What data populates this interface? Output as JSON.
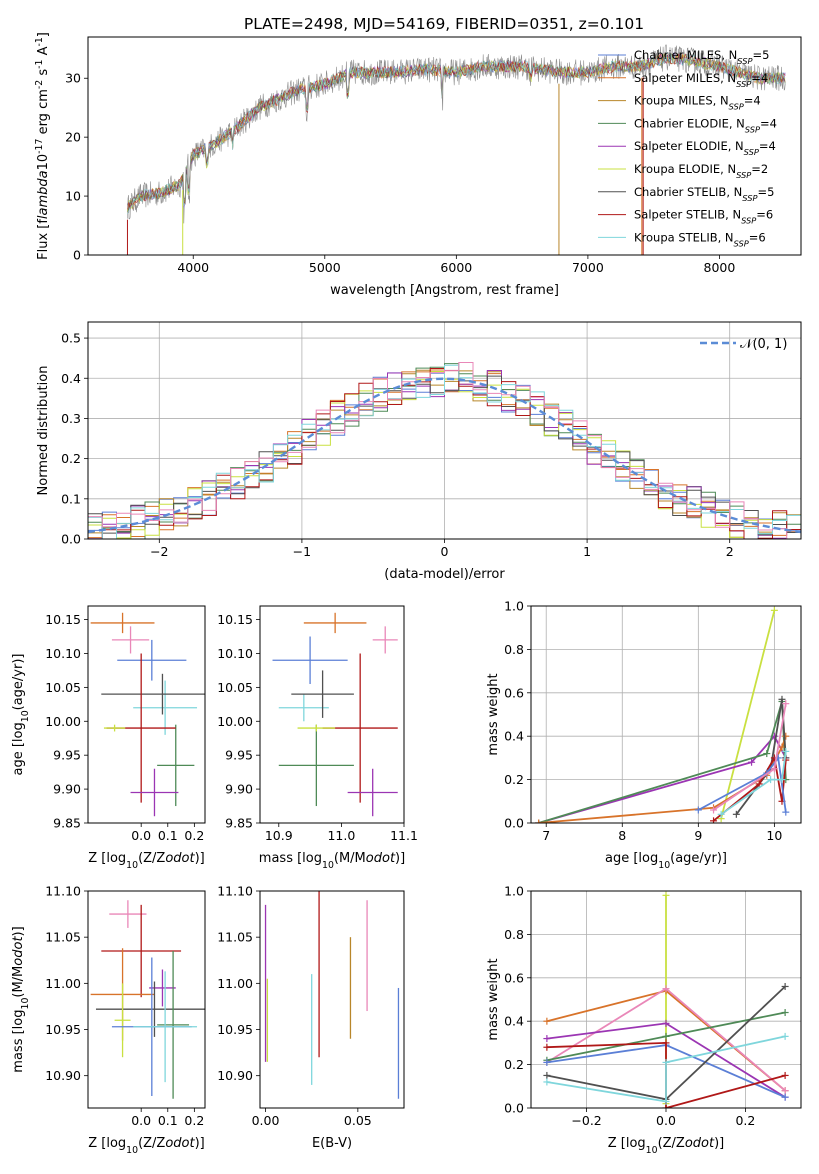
{
  "colors": {
    "chabrier_miles": "#5b7fd6",
    "salpeter_miles": "#d8732a",
    "kroupa_miles": "#b8862a",
    "chabrier_elodie": "#4f8a57",
    "salpeter_elodie": "#9b35b3",
    "kroupa_elodie": "#c9e040",
    "chabrier_stelib": "#505050",
    "salpeter_stelib": "#b01818",
    "kroupa_stelib": "#7fd6dc",
    "pink": "#e987b8",
    "normal_curve": "#5b8cd6"
  },
  "chart_data": [
    {
      "id": "spectrum",
      "type": "line",
      "title": "PLATE=2498, MJD=54169, FIBERID=0351, z=0.101",
      "xlabel": "wavelength [Angstrom, rest frame]",
      "ylabel": "Flux [f$_\\lambda$10$^{-17}$ erg cm$^{-2}$ s$^{-1}$ A$^{-1}$]",
      "xlim": [
        3200,
        8620
      ],
      "ylim": [
        0,
        37
      ],
      "xticks": [
        4000,
        5000,
        6000,
        7000,
        8000
      ],
      "yticks": [
        0,
        10,
        20,
        30
      ],
      "legend_position": "top-right",
      "continuum": [
        [
          3500,
          8
        ],
        [
          3600,
          10
        ],
        [
          3750,
          10.5
        ],
        [
          3900,
          12
        ],
        [
          4000,
          17
        ],
        [
          4100,
          18
        ],
        [
          4300,
          21
        ],
        [
          4500,
          25
        ],
        [
          4800,
          28
        ],
        [
          5000,
          29
        ],
        [
          5200,
          31
        ],
        [
          5500,
          31
        ],
        [
          5800,
          31.5
        ],
        [
          6000,
          31
        ],
        [
          6200,
          32
        ],
        [
          6500,
          32
        ],
        [
          6800,
          31
        ],
        [
          7000,
          31
        ],
        [
          7200,
          32
        ],
        [
          7400,
          32
        ],
        [
          7600,
          33.5
        ],
        [
          7800,
          33
        ],
        [
          8000,
          32
        ],
        [
          8300,
          30
        ],
        [
          8500,
          30
        ]
      ],
      "series": [
        {
          "name": "Chabrier MILES, N$_{SSP}$=5",
          "color_key": "chabrier_miles"
        },
        {
          "name": "Salpeter MILES, N$_{SSP}$=4",
          "color_key": "salpeter_miles"
        },
        {
          "name": "Kroupa MILES, N$_{SSP}$=4",
          "color_key": "kroupa_miles"
        },
        {
          "name": "Chabrier ELODIE, N$_{SSP}$=4",
          "color_key": "chabrier_elodie"
        },
        {
          "name": "Salpeter ELODIE, N$_{SSP}$=4",
          "color_key": "salpeter_elodie"
        },
        {
          "name": "Kroupa ELODIE, N$_{SSP}$=2",
          "color_key": "kroupa_elodie"
        },
        {
          "name": "Chabrier STELIB, N$_{SSP}$=5",
          "color_key": "chabrier_stelib"
        },
        {
          "name": "Salpeter STELIB, N$_{SSP}$=6",
          "color_key": "salpeter_stelib"
        },
        {
          "name": "Kroupa STELIB, N$_{SSP}$=6",
          "color_key": "kroupa_stelib"
        }
      ]
    },
    {
      "id": "residuals",
      "type": "histogram",
      "xlabel": "(data-model)/error",
      "ylabel": "Normed distribution",
      "xlim": [
        -2.5,
        2.5
      ],
      "ylim": [
        0,
        0.54
      ],
      "xticks": [
        -2,
        -1,
        0,
        1,
        2
      ],
      "yticks": [
        0.0,
        0.1,
        0.2,
        0.3,
        0.4,
        0.5
      ],
      "bin_width": 0.1,
      "grid": true,
      "legend_position": "top-right",
      "legend": [
        "$\\mathcal{N}(0, 1)$"
      ]
    },
    {
      "id": "age_vs_z",
      "type": "errorbar",
      "xlabel": "Z [log$_{10}$(Z/Z$_\\odot$)]",
      "ylabel": "age  [log$_{10}$(age/yr)]",
      "xlim": [
        -0.2,
        0.24
      ],
      "ylim": [
        9.85,
        10.17
      ],
      "xticks": [
        0.0,
        0.1,
        0.2
      ],
      "yticks": [
        9.85,
        9.9,
        9.95,
        10.0,
        10.05,
        10.1,
        10.15
      ],
      "points": [
        {
          "color_key": "salpeter_miles",
          "x": -0.07,
          "xerr": 0.12,
          "y": 10.145,
          "yerr": 0.015
        },
        {
          "color_key": "pink",
          "x": -0.04,
          "xerr": 0.07,
          "y": 10.12,
          "yerr": 0.02
        },
        {
          "color_key": "chabrier_miles",
          "x": 0.04,
          "xerr": 0.13,
          "y": 10.09,
          "yerr": 0.03
        },
        {
          "color_key": "kroupa_stelib",
          "x": 0.09,
          "xerr": 0.12,
          "y": 10.02,
          "yerr": 0.04
        },
        {
          "color_key": "chabrier_stelib",
          "x": 0.08,
          "xerr": 0.23,
          "y": 10.04,
          "yerr": 0.03
        },
        {
          "color_key": "chabrier_elodie",
          "x": 0.13,
          "xerr": 0.07,
          "y": 9.935,
          "yerr": 0.06
        },
        {
          "color_key": "salpeter_stelib",
          "x": 0.0,
          "xerr": 0.13,
          "y": 9.99,
          "yerr": 0.11
        },
        {
          "color_key": "salpeter_elodie",
          "x": 0.05,
          "xerr": 0.09,
          "y": 9.895,
          "yerr": 0.035
        },
        {
          "color_key": "kroupa_elodie",
          "x": -0.1,
          "xerr": 0.04,
          "y": 9.99,
          "yerr": 0.005
        }
      ]
    },
    {
      "id": "age_vs_mass",
      "type": "errorbar",
      "xlabel": "mass [log$_{10}$(M/M$_\\odot$)]",
      "ylabel": "",
      "xlim": [
        10.87,
        11.1
      ],
      "ylim": [
        9.85,
        10.17
      ],
      "xticks": [
        10.9,
        11.0,
        11.1
      ],
      "yticks": [
        9.85,
        9.9,
        9.95,
        10.0,
        10.05,
        10.1,
        10.15
      ],
      "points": [
        {
          "color_key": "salpeter_miles",
          "x": 10.99,
          "xerr": 0.05,
          "y": 10.145,
          "yerr": 0.015
        },
        {
          "color_key": "pink",
          "x": 11.07,
          "xerr": 0.02,
          "y": 10.12,
          "yerr": 0.02
        },
        {
          "color_key": "chabrier_miles",
          "x": 10.95,
          "xerr": 0.06,
          "y": 10.09,
          "yerr": 0.035
        },
        {
          "color_key": "kroupa_stelib",
          "x": 10.94,
          "xerr": 0.04,
          "y": 10.02,
          "yerr": 0.02
        },
        {
          "color_key": "chabrier_stelib",
          "x": 10.97,
          "xerr": 0.05,
          "y": 10.04,
          "yerr": 0.035
        },
        {
          "color_key": "chabrier_elodie",
          "x": 10.96,
          "xerr": 0.06,
          "y": 9.935,
          "yerr": 0.06
        },
        {
          "color_key": "salpeter_stelib",
          "x": 11.03,
          "xerr": 0.06,
          "y": 9.99,
          "yerr": 0.11
        },
        {
          "color_key": "salpeter_elodie",
          "x": 11.05,
          "xerr": 0.04,
          "y": 9.895,
          "yerr": 0.035
        },
        {
          "color_key": "kroupa_elodie",
          "x": 10.96,
          "xerr": 0.03,
          "y": 9.99,
          "yerr": 0.005
        }
      ]
    },
    {
      "id": "weight_vs_age",
      "type": "line",
      "xlabel": "age  [log$_{10}$(age/yr)]",
      "ylabel": "mass weight",
      "xlim": [
        6.8,
        10.35
      ],
      "ylim": [
        0,
        1.0
      ],
      "xticks": [
        7,
        8,
        9,
        10
      ],
      "yticks": [
        0.0,
        0.2,
        0.4,
        0.6,
        0.8,
        1.0
      ],
      "grid": true,
      "series": [
        {
          "color_key": "kroupa_elodie",
          "points": [
            [
              9.3,
              0.02
            ],
            [
              10.0,
              0.98
            ]
          ]
        },
        {
          "color_key": "salpeter_elodie",
          "points": [
            [
              6.9,
              0.0
            ],
            [
              9.7,
              0.28
            ],
            [
              10.0,
              0.4
            ],
            [
              10.15,
              0.3
            ]
          ]
        },
        {
          "color_key": "chabrier_elodie",
          "points": [
            [
              6.9,
              0.0
            ],
            [
              9.9,
              0.32
            ],
            [
              10.1,
              0.56
            ],
            [
              10.15,
              0.2
            ]
          ]
        },
        {
          "color_key": "salpeter_miles",
          "points": [
            [
              6.9,
              0.0
            ],
            [
              9.2,
              0.07
            ],
            [
              9.9,
              0.22
            ],
            [
              10.1,
              0.35
            ],
            [
              10.15,
              0.4
            ]
          ]
        },
        {
          "color_key": "chabrier_stelib",
          "points": [
            [
              9.5,
              0.04
            ],
            [
              9.95,
              0.25
            ],
            [
              10.1,
              0.57
            ],
            [
              10.15,
              0.3
            ]
          ]
        },
        {
          "color_key": "salpeter_stelib",
          "points": [
            [
              9.2,
              0.01
            ],
            [
              9.8,
              0.18
            ],
            [
              10.0,
              0.3
            ],
            [
              10.1,
              0.1
            ],
            [
              10.15,
              0.29
            ]
          ]
        },
        {
          "color_key": "chabrier_miles",
          "points": [
            [
              9.0,
              0.06
            ],
            [
              9.9,
              0.23
            ],
            [
              10.05,
              0.3
            ],
            [
              10.15,
              0.05
            ]
          ]
        },
        {
          "color_key": "kroupa_stelib",
          "points": [
            [
              9.3,
              0.04
            ],
            [
              9.95,
              0.2
            ],
            [
              10.1,
              0.2
            ],
            [
              10.15,
              0.33
            ]
          ]
        },
        {
          "color_key": "pink",
          "points": [
            [
              9.2,
              0.06
            ],
            [
              10.0,
              0.25
            ],
            [
              10.15,
              0.55
            ]
          ]
        }
      ]
    },
    {
      "id": "mass_vs_z",
      "type": "errorbar",
      "xlabel": "Z [log$_{10}$(Z/Z$_\\odot$)]",
      "ylabel": "mass [log$_{10}$(M/M$_\\odot$)]",
      "xlim": [
        -0.2,
        0.24
      ],
      "ylim": [
        10.865,
        11.1
      ],
      "xticks": [
        0.0,
        0.1,
        0.2
      ],
      "yticks": [
        10.9,
        10.95,
        11.0,
        11.05,
        11.1
      ],
      "points": [
        {
          "color_key": "pink",
          "x": -0.05,
          "xerr": 0.07,
          "y": 11.075,
          "yerr": 0.015
        },
        {
          "color_key": "salpeter_stelib",
          "x": 0.0,
          "xerr": 0.15,
          "y": 11.035,
          "yerr": 0.05
        },
        {
          "color_key": "salpeter_elodie",
          "x": 0.08,
          "xerr": 0.05,
          "y": 10.995,
          "yerr": 0.02
        },
        {
          "color_key": "salpeter_miles",
          "x": -0.07,
          "xerr": 0.12,
          "y": 10.988,
          "yerr": 0.05
        },
        {
          "color_key": "chabrier_stelib",
          "x": 0.05,
          "xerr": 0.22,
          "y": 10.972,
          "yerr": 0.03
        },
        {
          "color_key": "kroupa_elodie",
          "x": -0.07,
          "xerr": 0.03,
          "y": 10.96,
          "yerr": 0.04
        },
        {
          "color_key": "chabrier_elodie",
          "x": 0.12,
          "xerr": 0.06,
          "y": 10.955,
          "yerr": 0.08
        },
        {
          "color_key": "chabrier_miles",
          "x": 0.04,
          "xerr": 0.15,
          "y": 10.953,
          "yerr": 0.075
        },
        {
          "color_key": "kroupa_stelib",
          "x": 0.09,
          "xerr": 0.12,
          "y": 10.953,
          "yerr": 0.06
        }
      ]
    },
    {
      "id": "mass_vs_ebv",
      "type": "errorbar",
      "xlabel": "E(B-V)",
      "ylabel": "",
      "xlim": [
        -0.003,
        0.075
      ],
      "ylim": [
        10.865,
        11.1
      ],
      "xticks": [
        0.0,
        0.05
      ],
      "yticks": [
        10.9,
        10.95,
        11.0,
        11.05,
        11.1
      ],
      "points": [
        {
          "color_key": "salpeter_elodie",
          "x": 0.0,
          "y": 11.0,
          "yerr": 0.085
        },
        {
          "color_key": "kroupa_elodie",
          "x": 0.001,
          "y": 10.96,
          "yerr": 0.045
        },
        {
          "color_key": "kroupa_stelib",
          "x": 0.025,
          "y": 10.95,
          "yerr": 0.06
        },
        {
          "color_key": "salpeter_stelib",
          "x": 0.029,
          "y": 11.02,
          "yerr": 0.1
        },
        {
          "color_key": "kroupa_miles",
          "x": 0.046,
          "y": 10.995,
          "yerr": 0.055
        },
        {
          "color_key": "pink",
          "x": 0.055,
          "y": 11.03,
          "yerr": 0.06
        },
        {
          "color_key": "chabrier_miles",
          "x": 0.072,
          "y": 10.935,
          "yerr": 0.06
        }
      ]
    },
    {
      "id": "weight_vs_z",
      "type": "line",
      "xlabel": "Z [log$_{10}$(Z/Z$_\\odot$)]",
      "ylabel": "mass weight",
      "xlim": [
        -0.34,
        0.34
      ],
      "ylim": [
        0,
        1.0
      ],
      "xticks": [
        -0.2,
        0.0,
        0.2
      ],
      "yticks": [
        0.0,
        0.2,
        0.4,
        0.6,
        0.8,
        1.0
      ],
      "grid": true,
      "series": [
        {
          "color_key": "kroupa_elodie",
          "points": [
            [
              0.0,
              0.02
            ],
            [
              0.0,
              0.98
            ]
          ]
        },
        {
          "color_key": "salpeter_miles",
          "points": [
            [
              -0.3,
              0.4
            ],
            [
              0.0,
              0.54
            ],
            [
              0.3,
              0.08
            ]
          ]
        },
        {
          "color_key": "pink",
          "points": [
            [
              -0.3,
              0.21
            ],
            [
              0.0,
              0.55
            ],
            [
              0.3,
              0.08
            ]
          ]
        },
        {
          "color_key": "salpeter_elodie",
          "points": [
            [
              -0.3,
              0.32
            ],
            [
              0.0,
              0.39
            ],
            [
              0.3,
              0.05
            ]
          ]
        },
        {
          "color_key": "chabrier_elodie",
          "points": [
            [
              -0.3,
              0.22
            ],
            [
              0.0,
              0.33
            ],
            [
              0.3,
              0.44
            ]
          ]
        },
        {
          "color_key": "chabrier_miles",
          "points": [
            [
              -0.3,
              0.21
            ],
            [
              0.0,
              0.29
            ],
            [
              0.3,
              0.05
            ]
          ]
        },
        {
          "color_key": "salpeter_stelib",
          "points": [
            [
              -0.3,
              0.28
            ],
            [
              0.0,
              0.3
            ],
            [
              0.0,
              0.0
            ],
            [
              0.3,
              0.15
            ]
          ]
        },
        {
          "color_key": "chabrier_stelib",
          "points": [
            [
              -0.3,
              0.15
            ],
            [
              0.0,
              0.04
            ],
            [
              0.3,
              0.56
            ]
          ]
        },
        {
          "color_key": "kroupa_stelib",
          "points": [
            [
              -0.3,
              0.12
            ],
            [
              0.0,
              0.03
            ],
            [
              0.0,
              0.21
            ],
            [
              0.3,
              0.33
            ]
          ]
        }
      ]
    }
  ]
}
